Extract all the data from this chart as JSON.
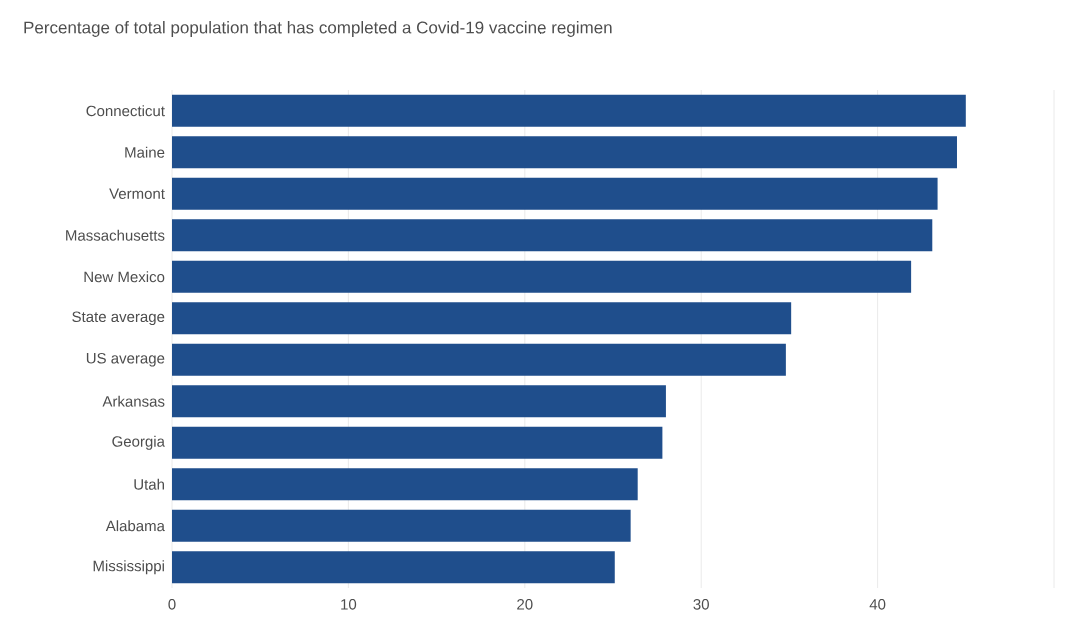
{
  "chart_data": {
    "type": "bar",
    "orientation": "horizontal",
    "title": "Percentage of total population that has completed a Covid-19 vaccine regimen",
    "categories": [
      "Connecticut",
      "Maine",
      "Vermont",
      "Massachusetts",
      "New Mexico",
      "State average",
      "US average",
      "Arkansas",
      "Georgia",
      "Utah",
      "Alabama",
      "Mississippi"
    ],
    "values": [
      45.0,
      44.5,
      43.4,
      43.1,
      41.9,
      35.1,
      34.8,
      28.0,
      27.8,
      26.4,
      26.0,
      25.1
    ],
    "color": "#1f4e8c",
    "xlim": [
      0,
      50
    ],
    "xticks": [
      0,
      10,
      20,
      30,
      40,
      {
        "value": 50,
        "label": null
      }
    ],
    "grid": "x"
  }
}
